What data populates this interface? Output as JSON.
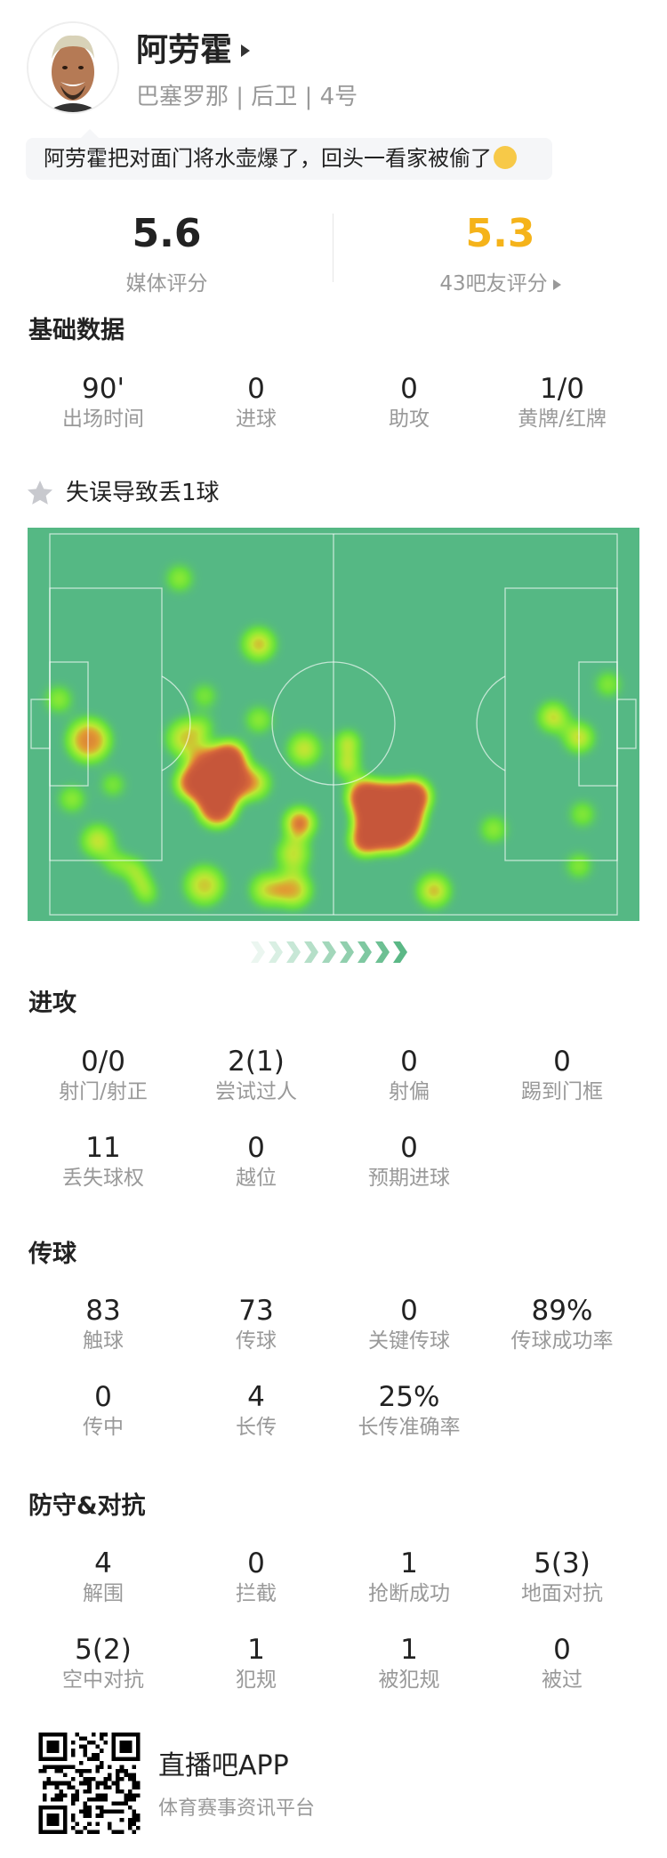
{
  "player": {
    "name": "阿劳霍",
    "info": "巴塞罗那 | 后卫 | 4号",
    "comment": "阿劳霍把对面门将水壶爆了，回头一看家被偷了",
    "comment_emoji": "crying-face-icon"
  },
  "ratings": {
    "media": {
      "value": "5.6",
      "label": "媒体评分"
    },
    "fans": {
      "value": "5.3",
      "label": "43吧友评分",
      "color": "#f5b31a"
    }
  },
  "basic": {
    "title": "基础数据",
    "stats": [
      {
        "value": "90'",
        "label": "出场时间"
      },
      {
        "value": "0",
        "label": "进球"
      },
      {
        "value": "0",
        "label": "助攻"
      },
      {
        "value": "1/0",
        "label": "黄牌/红牌"
      }
    ]
  },
  "highlight": {
    "icon": "star-icon",
    "text": "失误导致丢1球"
  },
  "heatmap": {
    "pitch_color": "#55b884",
    "direction": "attacking-right"
  },
  "attack": {
    "title": "进攻",
    "stats": [
      {
        "value": "0/0",
        "label": "射门/射正"
      },
      {
        "value": "2(1)",
        "label": "尝试过人"
      },
      {
        "value": "0",
        "label": "射偏"
      },
      {
        "value": "0",
        "label": "踢到门框"
      },
      {
        "value": "11",
        "label": "丢失球权"
      },
      {
        "value": "0",
        "label": "越位"
      },
      {
        "value": "0",
        "label": "预期进球"
      }
    ]
  },
  "passing": {
    "title": "传球",
    "stats": [
      {
        "value": "83",
        "label": "触球"
      },
      {
        "value": "73",
        "label": "传球"
      },
      {
        "value": "0",
        "label": "关键传球"
      },
      {
        "value": "89%",
        "label": "传球成功率"
      },
      {
        "value": "0",
        "label": "传中"
      },
      {
        "value": "4",
        "label": "长传"
      },
      {
        "value": "25%",
        "label": "长传准确率"
      }
    ]
  },
  "defense": {
    "title": "防守&对抗",
    "stats": [
      {
        "value": "4",
        "label": "解围"
      },
      {
        "value": "0",
        "label": "拦截"
      },
      {
        "value": "1",
        "label": "抢断成功"
      },
      {
        "value": "5(3)",
        "label": "地面对抗"
      },
      {
        "value": "5(2)",
        "label": "空中对抗"
      },
      {
        "value": "1",
        "label": "犯规"
      },
      {
        "value": "1",
        "label": "被犯规"
      },
      {
        "value": "0",
        "label": "被过"
      }
    ]
  },
  "footer": {
    "app_name": "直播吧APP",
    "tagline": "体育赛事资讯平台"
  }
}
